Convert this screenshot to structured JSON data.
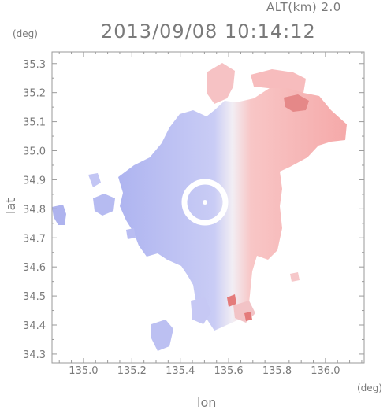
{
  "header": {
    "title": "2013/09/08 10:14:12",
    "altitude": "ALT(km) 2.0"
  },
  "axes": {
    "y_unit": "(deg)",
    "x_unit": "(deg)",
    "x_label": "lon",
    "y_label": "lat",
    "x_ticks": [
      "135.0",
      "135.2",
      "135.4",
      "135.6",
      "135.8",
      "136.0"
    ],
    "y_ticks": [
      "34.3",
      "34.4",
      "34.5",
      "34.6",
      "34.7",
      "34.8",
      "34.9",
      "35.0",
      "35.1",
      "35.2",
      "35.3"
    ]
  },
  "colors": {
    "approaching": "#b8bdf2",
    "receding": "#f7b5b5",
    "strong_receding": "#e06a6a",
    "near_zero": "#f4f1f6",
    "frame": "#9a9a9a",
    "text": "#7a7a7a"
  }
}
